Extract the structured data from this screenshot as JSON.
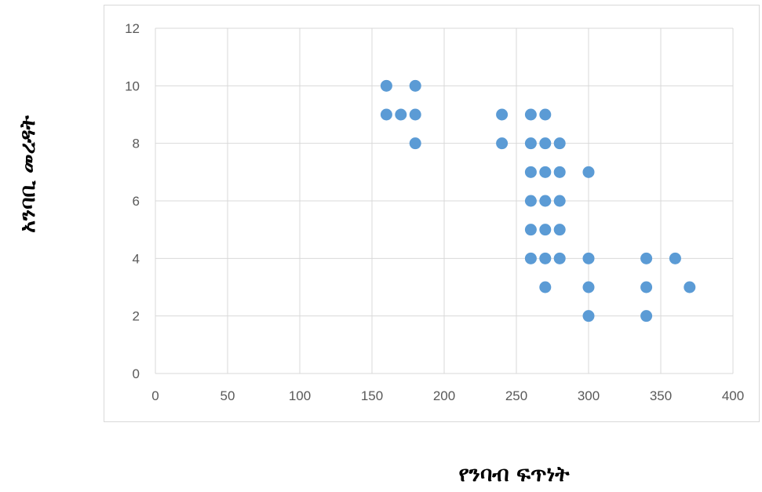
{
  "chart_data": {
    "type": "scatter",
    "xlabel": "የንባብ ፍጥነት",
    "ylabel": "አንባቢ መረዳት",
    "xlim": [
      0,
      400
    ],
    "ylim": [
      0,
      12
    ],
    "xticks": [
      0,
      50,
      100,
      150,
      200,
      250,
      300,
      350,
      400
    ],
    "yticks": [
      0,
      2,
      4,
      6,
      8,
      10,
      12
    ],
    "grid": true,
    "marker_color": "#5b9bd5",
    "gridline_color": "#d9d9d9",
    "points": [
      [
        160,
        10
      ],
      [
        180,
        10
      ],
      [
        160,
        9
      ],
      [
        170,
        9
      ],
      [
        180,
        9
      ],
      [
        240,
        9
      ],
      [
        260,
        9
      ],
      [
        270,
        9
      ],
      [
        180,
        8
      ],
      [
        240,
        8
      ],
      [
        260,
        8
      ],
      [
        270,
        8
      ],
      [
        280,
        8
      ],
      [
        260,
        7
      ],
      [
        270,
        7
      ],
      [
        280,
        7
      ],
      [
        300,
        7
      ],
      [
        260,
        6
      ],
      [
        270,
        6
      ],
      [
        280,
        6
      ],
      [
        260,
        5
      ],
      [
        270,
        5
      ],
      [
        280,
        5
      ],
      [
        260,
        4
      ],
      [
        270,
        4
      ],
      [
        280,
        4
      ],
      [
        300,
        4
      ],
      [
        340,
        4
      ],
      [
        360,
        4
      ],
      [
        270,
        3
      ],
      [
        300,
        3
      ],
      [
        340,
        3
      ],
      [
        370,
        3
      ],
      [
        300,
        2
      ],
      [
        340,
        2
      ]
    ]
  }
}
